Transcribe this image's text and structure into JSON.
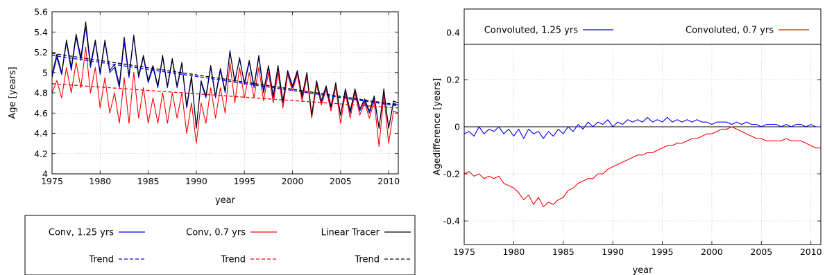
{
  "chart_data": [
    {
      "type": "line",
      "title": "",
      "xlabel": "year",
      "ylabel": "Age [years]",
      "xlim": [
        1975,
        2011
      ],
      "ylim": [
        4,
        5.6
      ],
      "xticks": [
        1975,
        1980,
        1985,
        1990,
        1995,
        2000,
        2005,
        2010
      ],
      "yticks": [
        4,
        4.2,
        4.4,
        4.6,
        4.8,
        5,
        5.2,
        5.4,
        5.6
      ],
      "xtick_labels": [
        "1975",
        "1980",
        "1985",
        "1990",
        "1995",
        "2000",
        "2005",
        "2010"
      ],
      "ytick_labels": [
        "4",
        "4.2",
        "4.4",
        "4.6",
        "4.8",
        "5",
        "5.2",
        "5.4",
        "5.6"
      ],
      "grid": true,
      "legend_position": "below",
      "series": [
        {
          "name": "Conv, 1.25 yrs",
          "color": "#0000ff",
          "style": "solid",
          "x": [
            1975.0,
            1975.5,
            1976.0,
            1976.5,
            1977.0,
            1977.5,
            1978.0,
            1978.5,
            1979.0,
            1979.5,
            1980.0,
            1980.5,
            1981.0,
            1981.5,
            1982.0,
            1982.5,
            1983.0,
            1983.5,
            1984.0,
            1984.5,
            1985.0,
            1985.5,
            1986.0,
            1986.5,
            1987.0,
            1987.5,
            1988.0,
            1988.5,
            1989.0,
            1989.5,
            1990.0,
            1990.5,
            1991.0,
            1991.5,
            1992.0,
            1992.5,
            1993.0,
            1993.5,
            1994.0,
            1994.5,
            1995.0,
            1995.5,
            1996.0,
            1996.5,
            1997.0,
            1997.5,
            1998.0,
            1998.5,
            1999.0,
            1999.5,
            2000.0,
            2000.5,
            2001.0,
            2001.5,
            2002.0,
            2002.5,
            2003.0,
            2003.5,
            2004.0,
            2004.5,
            2005.0,
            2005.5,
            2006.0,
            2006.5,
            2007.0,
            2007.5,
            2008.0,
            2008.5,
            2009.0,
            2009.5,
            2010.0,
            2010.5,
            2011.0
          ],
          "y": [
            4.95,
            5.15,
            4.98,
            5.3,
            5.02,
            5.35,
            5.12,
            5.45,
            5.05,
            5.3,
            4.98,
            5.3,
            5.0,
            5.05,
            4.85,
            5.3,
            4.95,
            5.35,
            4.95,
            5.15,
            4.9,
            5.05,
            4.85,
            5.15,
            4.85,
            5.12,
            4.85,
            5.08,
            4.65,
            4.95,
            4.45,
            4.9,
            4.75,
            5.05,
            4.75,
            5.02,
            4.8,
            5.22,
            4.9,
            5.15,
            4.88,
            5.1,
            4.85,
            5.15,
            4.8,
            5.05,
            4.75,
            5.05,
            4.7,
            5.0,
            4.85,
            5.0,
            4.75,
            4.98,
            4.58,
            4.9,
            4.7,
            4.85,
            4.65,
            4.88,
            4.58,
            4.82,
            4.6,
            4.82,
            4.62,
            4.72,
            4.6,
            4.75,
            4.45,
            4.82,
            4.45,
            4.7,
            4.68
          ]
        },
        {
          "name": "Conv, 0.7 yrs",
          "color": "#ff0000",
          "style": "solid",
          "x": [
            1975.0,
            1975.5,
            1976.0,
            1976.5,
            1977.0,
            1977.5,
            1978.0,
            1978.5,
            1979.0,
            1979.5,
            1980.0,
            1980.5,
            1981.0,
            1981.5,
            1982.0,
            1982.5,
            1983.0,
            1983.5,
            1984.0,
            1984.5,
            1985.0,
            1985.5,
            1986.0,
            1986.5,
            1987.0,
            1987.5,
            1988.0,
            1988.5,
            1989.0,
            1989.5,
            1990.0,
            1990.5,
            1991.0,
            1991.5,
            1992.0,
            1992.5,
            1993.0,
            1993.5,
            1994.0,
            1994.5,
            1995.0,
            1995.5,
            1996.0,
            1996.5,
            1997.0,
            1997.5,
            1998.0,
            1998.5,
            1999.0,
            1999.5,
            2000.0,
            2000.5,
            2001.0,
            2001.5,
            2002.0,
            2002.5,
            2003.0,
            2003.5,
            2004.0,
            2004.5,
            2005.0,
            2005.5,
            2006.0,
            2006.5,
            2007.0,
            2007.5,
            2008.0,
            2008.5,
            2009.0,
            2009.5,
            2010.0,
            2010.5,
            2011.0
          ],
          "y": [
            4.8,
            4.92,
            4.75,
            5.05,
            4.8,
            5.1,
            4.85,
            5.25,
            4.8,
            5.05,
            4.65,
            4.95,
            4.6,
            4.8,
            4.5,
            4.95,
            4.5,
            5.0,
            4.55,
            4.85,
            4.5,
            4.75,
            4.5,
            4.8,
            4.5,
            4.8,
            4.55,
            4.8,
            4.4,
            4.7,
            4.3,
            4.7,
            4.5,
            4.85,
            4.55,
            4.85,
            4.6,
            5.1,
            4.7,
            5.05,
            4.75,
            5.0,
            4.75,
            5.05,
            4.72,
            5.0,
            4.7,
            5.0,
            4.65,
            4.98,
            4.82,
            4.98,
            4.72,
            4.96,
            4.55,
            4.88,
            4.68,
            4.83,
            4.62,
            4.86,
            4.5,
            4.8,
            4.55,
            4.8,
            4.58,
            4.7,
            4.55,
            4.72,
            4.27,
            4.78,
            4.3,
            4.62,
            4.6
          ]
        },
        {
          "name": "Linear Tracer",
          "color": "#000000",
          "style": "solid",
          "x": [
            1975.0,
            1975.5,
            1976.0,
            1976.5,
            1977.0,
            1977.5,
            1978.0,
            1978.5,
            1979.0,
            1979.5,
            1980.0,
            1980.5,
            1981.0,
            1981.5,
            1982.0,
            1982.5,
            1983.0,
            1983.5,
            1984.0,
            1984.5,
            1985.0,
            1985.5,
            1986.0,
            1986.5,
            1987.0,
            1987.5,
            1988.0,
            1988.5,
            1989.0,
            1989.5,
            1990.0,
            1990.5,
            1991.0,
            1991.5,
            1992.0,
            1992.5,
            1993.0,
            1993.5,
            1994.0,
            1994.5,
            1995.0,
            1995.5,
            1996.0,
            1996.5,
            1997.0,
            1997.5,
            1998.0,
            1998.5,
            1999.0,
            1999.5,
            2000.0,
            2000.5,
            2001.0,
            2001.5,
            2002.0,
            2002.5,
            2003.0,
            2003.5,
            2004.0,
            2004.5,
            2005.0,
            2005.5,
            2006.0,
            2006.5,
            2007.0,
            2007.5,
            2008.0,
            2008.5,
            2009.0,
            2009.5,
            2010.0,
            2010.5,
            2011.0
          ],
          "y": [
            4.98,
            5.18,
            5.0,
            5.32,
            5.05,
            5.38,
            5.15,
            5.5,
            5.08,
            5.32,
            5.0,
            5.32,
            5.02,
            5.08,
            4.88,
            5.35,
            4.97,
            5.37,
            4.97,
            5.17,
            4.92,
            5.07,
            4.87,
            5.17,
            4.87,
            5.14,
            4.87,
            5.1,
            4.67,
            4.97,
            4.45,
            4.92,
            4.77,
            5.07,
            4.77,
            5.04,
            4.82,
            5.2,
            4.92,
            5.13,
            4.9,
            5.12,
            4.87,
            5.17,
            4.82,
            5.07,
            4.77,
            5.07,
            4.72,
            5.02,
            4.87,
            5.02,
            4.77,
            5.0,
            4.58,
            4.92,
            4.72,
            4.87,
            4.67,
            4.9,
            4.58,
            4.84,
            4.62,
            4.84,
            4.64,
            4.74,
            4.62,
            4.77,
            4.45,
            4.84,
            4.45,
            4.72,
            4.7
          ]
        },
        {
          "name": "Trend",
          "color": "#0000ff",
          "style": "dashed",
          "x": [
            1975,
            2011
          ],
          "y": [
            5.17,
            4.67
          ]
        },
        {
          "name": "Trend",
          "color": "#ff0000",
          "style": "dashed",
          "x": [
            1975,
            2011
          ],
          "y": [
            4.89,
            4.65
          ]
        },
        {
          "name": "Trend",
          "color": "#000000",
          "style": "dashed",
          "x": [
            1975,
            2011
          ],
          "y": [
            5.19,
            4.68
          ]
        }
      ]
    },
    {
      "type": "line",
      "title": "",
      "xlabel": "year",
      "ylabel": "Agedifference [years]",
      "xlim": [
        1975,
        2011
      ],
      "ylim": [
        -0.5,
        0.5
      ],
      "xticks": [
        1975,
        1980,
        1985,
        1990,
        1995,
        2000,
        2005,
        2010
      ],
      "yticks": [
        -0.4,
        -0.2,
        0,
        0.2,
        0.4
      ],
      "xtick_labels": [
        "1975",
        "1980",
        "1985",
        "1990",
        "1995",
        "2000",
        "2005",
        "2010"
      ],
      "ytick_labels": [
        "-0.4",
        "-0.2",
        "0",
        "0.2",
        "0.4"
      ],
      "grid": true,
      "legend_position": "top",
      "series": [
        {
          "name": "Convoluted, 1.25 yrs",
          "color": "#0000ff",
          "style": "solid",
          "x": [
            1975.0,
            1975.5,
            1976.0,
            1976.5,
            1977.0,
            1977.5,
            1978.0,
            1978.5,
            1979.0,
            1979.5,
            1980.0,
            1980.5,
            1981.0,
            1981.5,
            1982.0,
            1982.5,
            1983.0,
            1983.5,
            1984.0,
            1984.5,
            1985.0,
            1985.5,
            1986.0,
            1986.5,
            1987.0,
            1987.5,
            1988.0,
            1988.5,
            1989.0,
            1989.5,
            1990.0,
            1990.5,
            1991.0,
            1991.5,
            1992.0,
            1992.5,
            1993.0,
            1993.5,
            1994.0,
            1994.5,
            1995.0,
            1995.5,
            1996.0,
            1996.5,
            1997.0,
            1997.5,
            1998.0,
            1998.5,
            1999.0,
            1999.5,
            2000.0,
            2000.5,
            2001.0,
            2001.5,
            2002.0,
            2002.5,
            2003.0,
            2003.5,
            2004.0,
            2004.5,
            2005.0,
            2005.5,
            2006.0,
            2006.5,
            2007.0,
            2007.5,
            2008.0,
            2008.5,
            2009.0,
            2009.5,
            2010.0,
            2010.5,
            2011.0
          ],
          "y": [
            -0.03,
            -0.02,
            -0.04,
            0.0,
            -0.03,
            -0.01,
            -0.02,
            0.0,
            -0.03,
            -0.01,
            -0.04,
            -0.01,
            -0.05,
            -0.01,
            -0.03,
            -0.02,
            -0.05,
            -0.02,
            -0.04,
            -0.01,
            -0.03,
            0.0,
            -0.02,
            0.01,
            -0.01,
            0.02,
            0.0,
            0.02,
            0.01,
            0.03,
            0.0,
            0.02,
            0.01,
            0.03,
            0.02,
            0.03,
            0.02,
            0.04,
            0.02,
            0.03,
            0.02,
            0.04,
            0.02,
            0.03,
            0.02,
            0.03,
            0.02,
            0.03,
            0.02,
            0.02,
            0.01,
            0.02,
            0.02,
            0.02,
            0.01,
            0.02,
            0.01,
            0.02,
            0.01,
            0.01,
            0.0,
            0.01,
            0.01,
            0.01,
            0.0,
            0.01,
            0.0,
            0.01,
            0.01,
            0.0,
            0.01,
            0.0,
            0.0
          ]
        },
        {
          "name": "Convoluted, 0.7 yrs",
          "color": "#ff0000",
          "style": "solid",
          "x": [
            1975.0,
            1975.5,
            1976.0,
            1976.5,
            1977.0,
            1977.5,
            1978.0,
            1978.5,
            1979.0,
            1979.5,
            1980.0,
            1980.5,
            1981.0,
            1981.5,
            1982.0,
            1982.5,
            1983.0,
            1983.5,
            1984.0,
            1984.5,
            1985.0,
            1985.5,
            1986.0,
            1986.5,
            1987.0,
            1987.5,
            1988.0,
            1988.5,
            1989.0,
            1989.5,
            1990.0,
            1990.5,
            1991.0,
            1991.5,
            1992.0,
            1992.5,
            1993.0,
            1993.5,
            1994.0,
            1994.5,
            1995.0,
            1995.5,
            1996.0,
            1996.5,
            1997.0,
            1997.5,
            1998.0,
            1998.5,
            1999.0,
            1999.5,
            2000.0,
            2000.5,
            2001.0,
            2001.5,
            2002.0,
            2002.5,
            2003.0,
            2003.5,
            2004.0,
            2004.5,
            2005.0,
            2005.5,
            2006.0,
            2006.5,
            2007.0,
            2007.5,
            2008.0,
            2008.5,
            2009.0,
            2009.5,
            2010.0,
            2010.5,
            2011.0
          ],
          "y": [
            -0.2,
            -0.19,
            -0.21,
            -0.2,
            -0.22,
            -0.21,
            -0.22,
            -0.21,
            -0.24,
            -0.25,
            -0.26,
            -0.28,
            -0.31,
            -0.29,
            -0.33,
            -0.3,
            -0.34,
            -0.32,
            -0.33,
            -0.31,
            -0.3,
            -0.27,
            -0.26,
            -0.24,
            -0.23,
            -0.22,
            -0.22,
            -0.2,
            -0.2,
            -0.18,
            -0.17,
            -0.16,
            -0.15,
            -0.14,
            -0.13,
            -0.12,
            -0.12,
            -0.11,
            -0.11,
            -0.1,
            -0.09,
            -0.08,
            -0.08,
            -0.07,
            -0.07,
            -0.06,
            -0.05,
            -0.05,
            -0.04,
            -0.03,
            -0.03,
            -0.02,
            -0.01,
            -0.01,
            0.0,
            -0.01,
            -0.02,
            -0.03,
            -0.04,
            -0.05,
            -0.05,
            -0.06,
            -0.06,
            -0.06,
            -0.06,
            -0.05,
            -0.06,
            -0.06,
            -0.06,
            -0.07,
            -0.08,
            -0.09,
            -0.09
          ]
        }
      ]
    }
  ]
}
